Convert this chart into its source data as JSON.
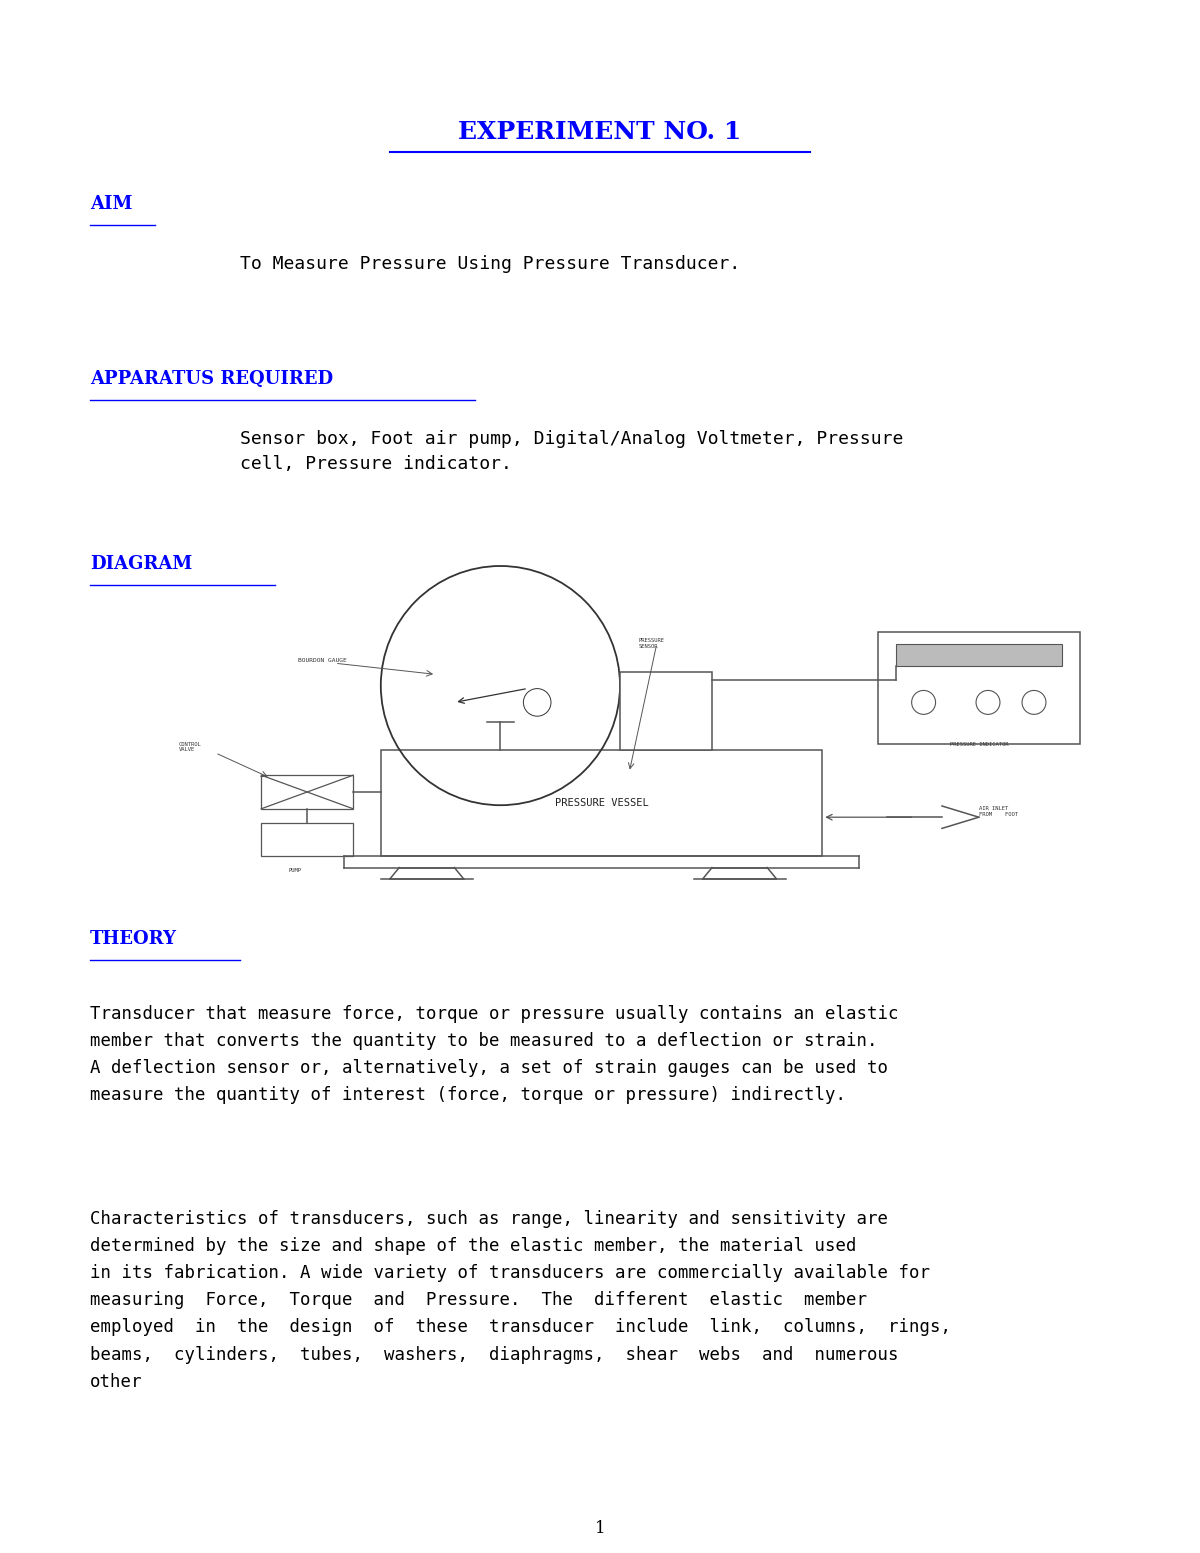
{
  "title": "EXPERIMENT NO. 1",
  "aim_label": "AIM",
  "aim_text": "To Measure Pressure Using Pressure Transducer.",
  "apparatus_label": "APPARATUS REQUIRED",
  "apparatus_text": "Sensor box, Foot air pump, Digital/Analog Voltmeter, Pressure\ncell, Pressure indicator.",
  "diagram_label": "DIAGRAM",
  "theory_label": "THEORY",
  "theory_text1": "Transducer that measure force, torque or pressure usually contains an elastic\nmember that converts the quantity to be measured to a deflection or strain.\nA deflection sensor or, alternatively, a set of strain gauges can be used to\nmeasure the quantity of interest (force, torque or pressure) indirectly.",
  "theory_text2": "Characteristics of transducers, such as range, linearity and sensitivity are\ndetermined by the size and shape of the elastic member, the material used\nin its fabrication. A wide variety of transducers are commercially available for\nmeasuring  Force,  Torque  and  Pressure.  The  different  elastic  member\nemployed  in  the  design  of  these  transducer  include  link,  columns,  rings,\nbeams,  cylinders,  tubes,  washers,  diaphragms,  shear  webs  and  numerous\nother",
  "page_number": "1",
  "blue_color": "#0000FF",
  "black_color": "#000000",
  "bg_color": "#FFFFFF",
  "diagram_color": "#555555"
}
